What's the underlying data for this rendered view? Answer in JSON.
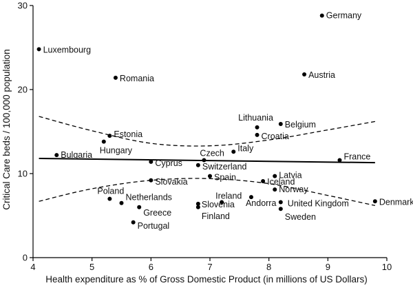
{
  "chart_data": {
    "type": "scatter",
    "xlabel": "Health expenditure as % of Gross Domestic Product  (in millions of US Dollars)",
    "ylabel": "Critical Care  beds / 100,000 population",
    "xlim": [
      4,
      10
    ],
    "ylim": [
      0,
      30
    ],
    "xticks": [
      4,
      5,
      6,
      7,
      8,
      9,
      10
    ],
    "yticks": [
      0,
      10,
      20,
      30
    ],
    "grid": false,
    "points": [
      {
        "label": "Germany",
        "x": 8.9,
        "y": 28.8
      },
      {
        "label": "Luxembourg",
        "x": 4.1,
        "y": 24.8
      },
      {
        "label": "Austria",
        "x": 8.6,
        "y": 21.8
      },
      {
        "label": "Romania",
        "x": 5.4,
        "y": 21.4
      },
      {
        "label": "Belgium",
        "x": 8.2,
        "y": 15.9
      },
      {
        "label": "Lithuania",
        "x": 7.8,
        "y": 15.5
      },
      {
        "label": "Croatia",
        "x": 7.8,
        "y": 14.6
      },
      {
        "label": "Estonia",
        "x": 5.3,
        "y": 14.5
      },
      {
        "label": "Hungary",
        "x": 5.2,
        "y": 13.8
      },
      {
        "label": "Italy",
        "x": 7.4,
        "y": 12.6
      },
      {
        "label": "Bulgaria",
        "x": 4.4,
        "y": 12.2
      },
      {
        "label": "Czech",
        "x": 6.9,
        "y": 11.6
      },
      {
        "label": "France",
        "x": 9.2,
        "y": 11.6
      },
      {
        "label": "Cyprus",
        "x": 6.0,
        "y": 11.4
      },
      {
        "label": "Switzerland",
        "x": 6.8,
        "y": 11.0
      },
      {
        "label": "Latvia",
        "x": 8.1,
        "y": 9.7
      },
      {
        "label": "Spain",
        "x": 7.0,
        "y": 9.7
      },
      {
        "label": "Slovakia",
        "x": 6.0,
        "y": 9.2
      },
      {
        "label": "Iceland",
        "x": 7.9,
        "y": 9.1
      },
      {
        "label": "Norway",
        "x": 8.1,
        "y": 8.1
      },
      {
        "label": "Poland",
        "x": 5.3,
        "y": 7.0
      },
      {
        "label": "Andorra",
        "x": 7.7,
        "y": 7.2
      },
      {
        "label": "Denmark",
        "x": 9.8,
        "y": 6.7
      },
      {
        "label": "Ireland",
        "x": 7.2,
        "y": 6.6
      },
      {
        "label": "United Kingdom",
        "x": 8.2,
        "y": 6.6
      },
      {
        "label": "Netherlands",
        "x": 5.5,
        "y": 6.5
      },
      {
        "label": "Slovenia",
        "x": 6.8,
        "y": 6.4
      },
      {
        "label": "Greece",
        "x": 5.8,
        "y": 6.0
      },
      {
        "label": "Finland",
        "x": 6.8,
        "y": 6.0
      },
      {
        "label": "Sweden",
        "x": 8.2,
        "y": 5.8
      },
      {
        "label": "Portugal",
        "x": 5.7,
        "y": 4.2
      }
    ],
    "fit_line": {
      "x": [
        4.1,
        9.8
      ],
      "y": [
        11.8,
        11.3
      ]
    },
    "confidence_upper": {
      "x": [
        4.1,
        5.0,
        6.0,
        7.0,
        8.0,
        9.0,
        9.8
      ],
      "y": [
        16.8,
        15.1,
        13.6,
        13.3,
        14.0,
        15.2,
        16.2
      ]
    },
    "confidence_lower": {
      "x": [
        4.1,
        5.0,
        6.0,
        7.0,
        8.0,
        9.0,
        9.8
      ],
      "y": [
        6.7,
        8.2,
        9.2,
        9.4,
        8.8,
        7.4,
        6.2
      ]
    }
  }
}
